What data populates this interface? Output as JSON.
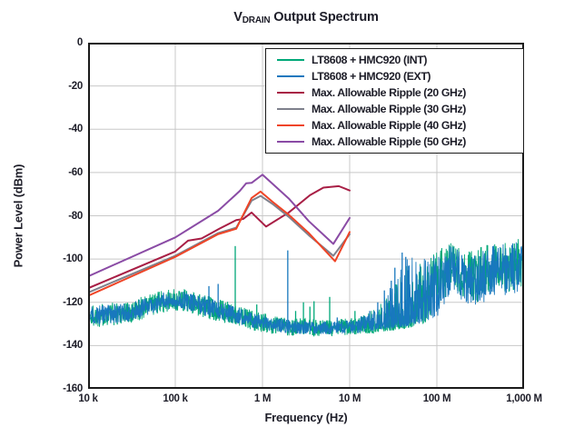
{
  "title": {
    "prefix": "V",
    "subscript": "DRAIN",
    "rest": " Output Spectrum"
  },
  "axes": {
    "x": {
      "label": "Frequency (Hz)",
      "ticks": [
        {
          "f": 10000,
          "label": "10 k"
        },
        {
          "f": 100000,
          "label": "100 k"
        },
        {
          "f": 1000000,
          "label": "1 M"
        },
        {
          "f": 10000000,
          "label": "10 M"
        },
        {
          "f": 100000000,
          "label": "100 M"
        },
        {
          "f": 1000000000,
          "label": "1,000 M"
        }
      ]
    },
    "y": {
      "label": "Power Level (dBm)",
      "ticks": [
        {
          "v": 0,
          "label": "0"
        },
        {
          "v": -20,
          "label": "-20"
        },
        {
          "v": -40,
          "label": "-40"
        },
        {
          "v": -60,
          "label": "-60"
        },
        {
          "v": -80,
          "label": "-80"
        },
        {
          "v": -100,
          "label": "-100"
        },
        {
          "v": -120,
          "label": "-120"
        },
        {
          "v": -140,
          "label": "-140"
        },
        {
          "v": -160,
          "label": "-160"
        }
      ]
    }
  },
  "colors": {
    "text": "#1d1d28",
    "axis": "#1a1a1a",
    "grid": "#c8c8c8",
    "int_green": "#00a878",
    "ext_blue": "#1878be",
    "ripple20_crimson": "#a81e45",
    "ripple30_gray": "#7e808c",
    "ripple40_orange": "#ef4426",
    "ripple50_purple": "#8a4ba5"
  },
  "legend": [
    {
      "label": "LT8608 + HMC920 (INT)",
      "color": "#00a878"
    },
    {
      "label": "LT8608 + HMC920 (EXT)",
      "color": "#1878be"
    },
    {
      "label": "Max. Allowable Ripple (20 GHz)",
      "color": "#a81e45"
    },
    {
      "label": "Max. Allowable Ripple (30 GHz)",
      "color": "#7e808c"
    },
    {
      "label": "Max. Allowable Ripple (40 GHz)",
      "color": "#ef4426"
    },
    {
      "label": "Max. Allowable Ripple (50 GHz)",
      "color": "#8a4ba5"
    }
  ],
  "chart_data": {
    "type": "line",
    "title": "VDRAIN Output Spectrum",
    "xlabel": "Frequency (Hz)",
    "ylabel": "Power Level (dBm)",
    "x_axis": {
      "scale": "log",
      "min_hz": 10000,
      "max_hz": 1000000000
    },
    "y_axis": {
      "min_dbm": -160,
      "max_dbm": 0,
      "grid_step": 20
    },
    "grid": true,
    "legend_position": "top-right",
    "ripple_series": [
      {
        "name": "Max. Allowable Ripple (20 GHz)",
        "color": "#a81e45",
        "points": [
          [
            10000,
            -113.5
          ],
          [
            100000,
            -96.5
          ],
          [
            140000,
            -91.5
          ],
          [
            200000,
            -90.5
          ],
          [
            320000,
            -86
          ],
          [
            500000,
            -82
          ],
          [
            600000,
            -81.5
          ],
          [
            750000,
            -78.5
          ],
          [
            1100000,
            -85
          ],
          [
            2000000,
            -78.5
          ],
          [
            3500000,
            -70.5
          ],
          [
            5000000,
            -67
          ],
          [
            7500000,
            -66.3
          ],
          [
            10000000,
            -68.3
          ]
        ]
      },
      {
        "name": "Max. Allowable Ripple (30 GHz)",
        "color": "#7e808c",
        "points": [
          [
            10000,
            -115.5
          ],
          [
            100000,
            -98.5
          ],
          [
            310000,
            -88
          ],
          [
            500000,
            -85.5
          ],
          [
            750000,
            -73
          ],
          [
            950000,
            -70.8
          ],
          [
            1300000,
            -74.5
          ],
          [
            2000000,
            -80.5
          ],
          [
            3400000,
            -89
          ],
          [
            6500000,
            -98.5
          ],
          [
            10000000,
            -88.5
          ]
        ]
      },
      {
        "name": "Max. Allowable Ripple (40 GHz)",
        "color": "#ef4426",
        "points": [
          [
            10000,
            -117
          ],
          [
            100000,
            -99
          ],
          [
            310000,
            -88.5
          ],
          [
            500000,
            -86
          ],
          [
            750000,
            -71.8
          ],
          [
            950000,
            -68.8
          ],
          [
            1300000,
            -73.5
          ],
          [
            2000000,
            -79.5
          ],
          [
            3400000,
            -88
          ],
          [
            6800000,
            -101
          ],
          [
            10000000,
            -87.5
          ]
        ]
      },
      {
        "name": "Max. Allowable Ripple (50 GHz)",
        "color": "#8a4ba5",
        "points": [
          [
            10000,
            -108
          ],
          [
            100000,
            -90
          ],
          [
            310000,
            -77.7
          ],
          [
            550000,
            -68.5
          ],
          [
            650000,
            -65
          ],
          [
            750000,
            -64.8
          ],
          [
            1000000,
            -61
          ],
          [
            2000000,
            -72
          ],
          [
            3400000,
            -82.5
          ],
          [
            6500000,
            -93
          ],
          [
            10000000,
            -81
          ]
        ]
      }
    ],
    "noise_series": [
      {
        "name": "LT8608 + HMC920 (INT)",
        "color": "#00a878",
        "seed": 1337,
        "envelope": [
          [
            10000,
            -132,
            -121,
            1
          ],
          [
            30000,
            -130,
            -119,
            1
          ],
          [
            70000,
            -125,
            -114.5,
            1
          ],
          [
            120000,
            -124,
            -113.5,
            1
          ],
          [
            250000,
            -128,
            -117,
            1
          ],
          [
            500000,
            -131,
            -121,
            1
          ],
          [
            1000000,
            -134,
            -125,
            1
          ],
          [
            2000000,
            -135.5,
            -127,
            1
          ],
          [
            5000000,
            -136,
            -128,
            1
          ],
          [
            12000000,
            -135,
            -127,
            1
          ],
          [
            20000000,
            -134,
            -123,
            1.5
          ],
          [
            30000000,
            -133,
            -115,
            2.5
          ],
          [
            45000000,
            -132,
            -103,
            2.6
          ],
          [
            70000000,
            -130,
            -102,
            1.8
          ],
          [
            100000000,
            -125,
            -96,
            1.2
          ],
          [
            150000000,
            -112,
            -92,
            0.9
          ],
          [
            200000000,
            -118,
            -96,
            1.2
          ],
          [
            300000000,
            -120,
            -95,
            1.0
          ],
          [
            400000000,
            -115,
            -91,
            0.9
          ],
          [
            600000000,
            -116,
            -92,
            0.9
          ],
          [
            800000000,
            -114,
            -91,
            0.9
          ],
          [
            1000000000,
            -112,
            -90,
            0.9
          ]
        ],
        "spikes": [
          [
            487000,
            -94
          ],
          [
            860000,
            -121
          ],
          [
            2400000,
            -124
          ],
          [
            2950000,
            -120
          ],
          [
            3500000,
            -122
          ],
          [
            3900000,
            -119.5
          ],
          [
            5900000,
            -117.5
          ],
          [
            11500000,
            -124
          ]
        ]
      },
      {
        "name": "LT8608 + HMC920 (EXT)",
        "color": "#1878be",
        "seed": 4242,
        "envelope": [
          [
            10000,
            -131,
            -122,
            1
          ],
          [
            30000,
            -129,
            -120,
            1
          ],
          [
            70000,
            -124,
            -115.5,
            1
          ],
          [
            120000,
            -123,
            -114.5,
            1
          ],
          [
            250000,
            -127,
            -118,
            1
          ],
          [
            500000,
            -130,
            -122,
            1
          ],
          [
            1000000,
            -133,
            -126,
            1
          ],
          [
            2000000,
            -134.5,
            -128,
            1
          ],
          [
            5000000,
            -135,
            -129,
            1
          ],
          [
            12000000,
            -134.5,
            -128,
            1
          ],
          [
            20000000,
            -133,
            -124,
            1.5
          ],
          [
            30000000,
            -132,
            -112,
            2.5
          ],
          [
            45000000,
            -131,
            -99,
            2.8
          ],
          [
            70000000,
            -129,
            -100,
            1.6
          ],
          [
            100000000,
            -127,
            -97,
            1.3
          ],
          [
            150000000,
            -115,
            -93,
            0.9
          ],
          [
            200000000,
            -120,
            -98,
            1.2
          ],
          [
            300000000,
            -122,
            -97,
            1.1
          ],
          [
            400000000,
            -118,
            -94,
            1.0
          ],
          [
            600000000,
            -118,
            -93,
            0.9
          ],
          [
            800000000,
            -116,
            -92,
            0.9
          ],
          [
            1000000000,
            -114,
            -92,
            0.9
          ]
        ],
        "spikes": [
          [
            243000,
            -112.5
          ],
          [
            310000,
            -111.5
          ],
          [
            1950000,
            -96
          ],
          [
            7200000,
            -127
          ],
          [
            13600000,
            -126.5
          ],
          [
            17000000,
            -124
          ],
          [
            21000000,
            -120
          ],
          [
            25000000,
            -114.5
          ],
          [
            30000000,
            -110
          ],
          [
            33000000,
            -104
          ],
          [
            40000000,
            -97
          ],
          [
            44000000,
            -99
          ],
          [
            48000000,
            -103
          ]
        ]
      }
    ]
  }
}
